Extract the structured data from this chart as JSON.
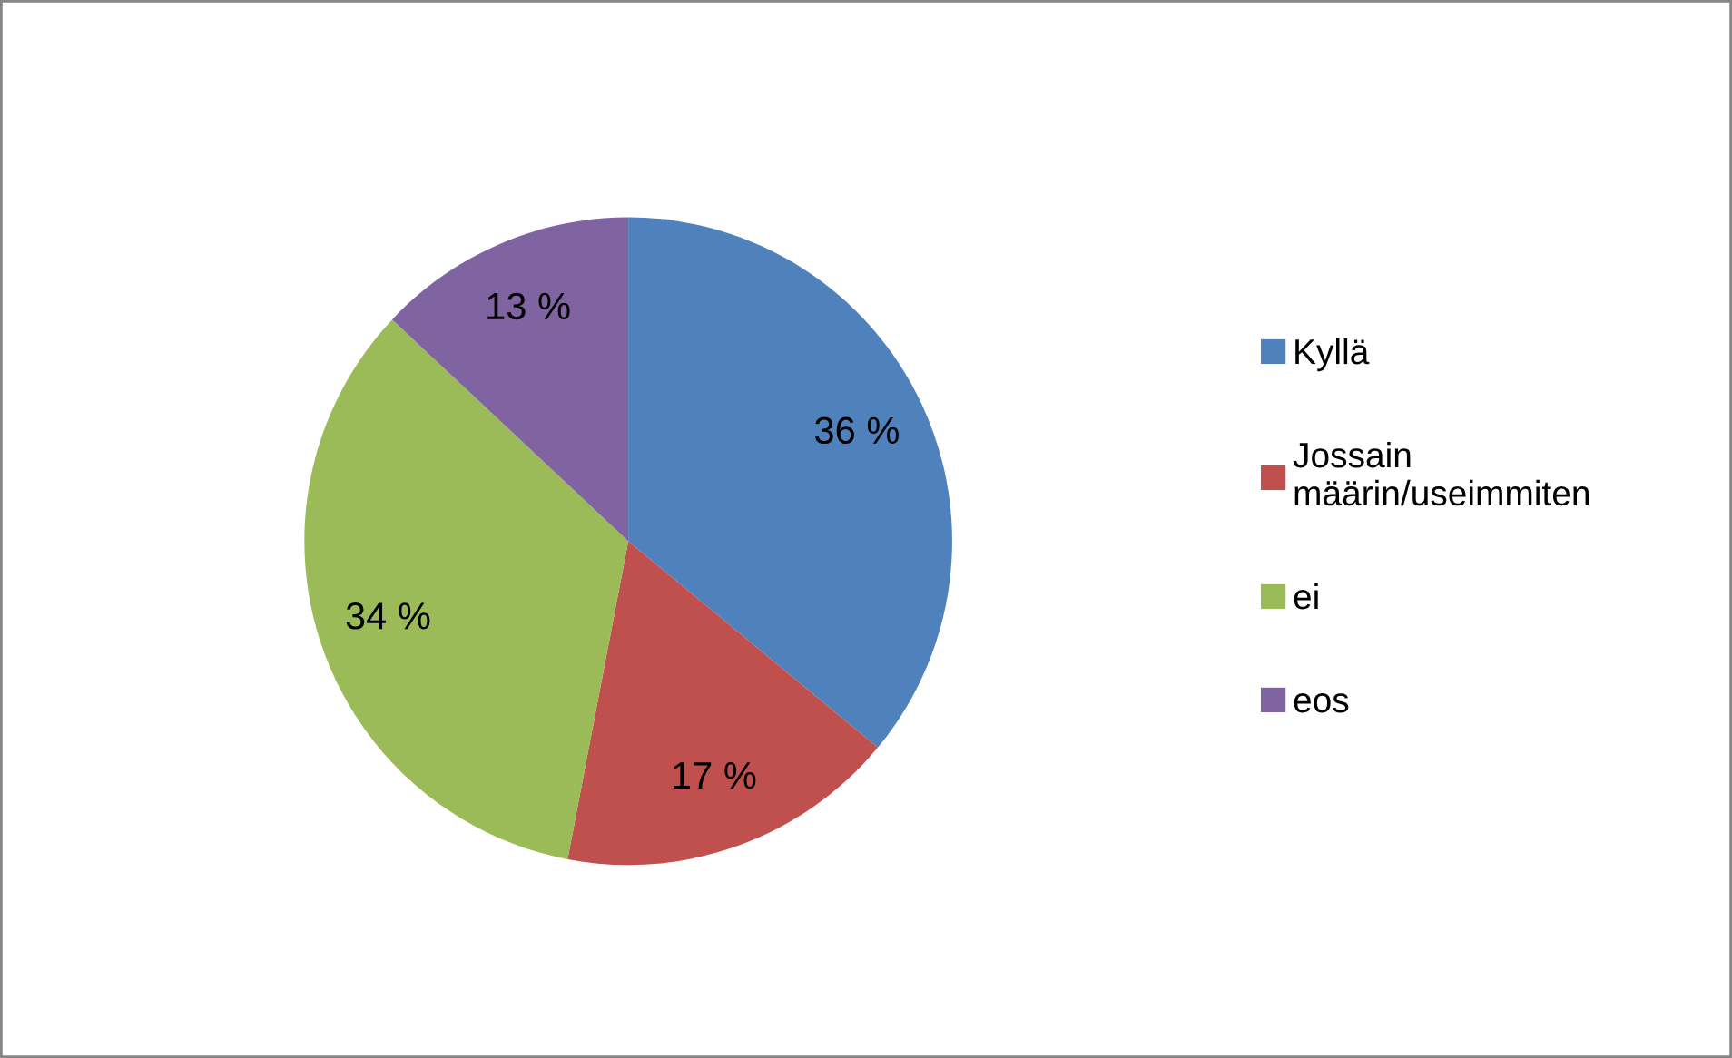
{
  "chart_data": {
    "type": "pie",
    "categories": [
      "Kyllä",
      "Jossain määrin/useimmiten",
      "ei",
      "eos"
    ],
    "values": [
      36,
      17,
      34,
      13
    ],
    "colors": [
      "#4f81bd",
      "#c0504d",
      "#9bbb59",
      "#8064a2"
    ],
    "value_labels": [
      "36 %",
      "17 %",
      "34 %",
      "13 %"
    ],
    "legend": "right"
  }
}
